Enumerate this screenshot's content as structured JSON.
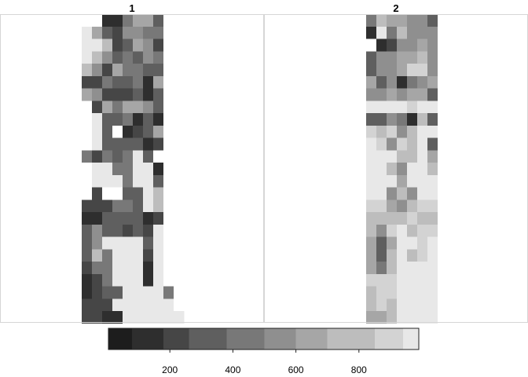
{
  "chart_data": {
    "type": "heatmap",
    "colorbar": {
      "ticks": [
        200,
        400,
        600,
        800
      ],
      "breaks": [
        5,
        80,
        180,
        260,
        380,
        500,
        600,
        700,
        850,
        940,
        990
      ],
      "colors": [
        "#1d1d1d",
        "#2e2e2e",
        "#464646",
        "#5f5f5f",
        "#787878",
        "#8f8f8f",
        "#a6a6a6",
        "#bdbdbd",
        "#d3d3d3",
        "#e8e8e8"
      ]
    },
    "na_color": "#ffffff",
    "panels": [
      {
        "title": "1",
        "ncols": 10,
        "rows": [
          [
            0,
            0,
            1,
            1,
            4,
            6,
            6,
            3,
            0,
            0
          ],
          [
            9,
            6,
            3,
            2,
            5,
            5,
            4,
            4,
            0,
            0
          ],
          [
            9,
            9,
            7,
            2,
            3,
            6,
            5,
            2,
            0,
            0
          ],
          [
            9,
            7,
            5,
            3,
            4,
            3,
            5,
            4,
            0,
            0
          ],
          [
            7,
            5,
            2,
            6,
            4,
            4,
            3,
            3,
            0,
            0
          ],
          [
            2,
            2,
            4,
            3,
            3,
            4,
            1,
            6,
            0,
            0
          ],
          [
            6,
            5,
            2,
            2,
            2,
            3,
            1,
            3,
            0,
            0
          ],
          [
            0,
            2,
            6,
            4,
            6,
            6,
            5,
            3,
            0,
            0
          ],
          [
            0,
            9,
            3,
            3,
            4,
            1,
            3,
            1,
            0,
            0
          ],
          [
            0,
            9,
            3,
            0,
            1,
            2,
            3,
            6,
            0,
            0
          ],
          [
            0,
            9,
            3,
            3,
            3,
            3,
            1,
            2,
            0,
            0
          ],
          [
            4,
            2,
            4,
            3,
            4,
            9,
            3,
            0,
            0,
            0
          ],
          [
            0,
            9,
            9,
            4,
            4,
            9,
            9,
            1,
            0,
            0
          ],
          [
            0,
            9,
            9,
            9,
            4,
            9,
            9,
            3,
            0,
            0
          ],
          [
            0,
            2,
            0,
            0,
            3,
            3,
            9,
            7,
            0,
            0
          ],
          [
            2,
            2,
            2,
            4,
            4,
            3,
            9,
            7,
            0,
            0
          ],
          [
            1,
            1,
            3,
            3,
            3,
            3,
            1,
            2,
            0,
            0
          ],
          [
            3,
            5,
            3,
            3,
            2,
            3,
            2,
            9,
            0,
            0
          ],
          [
            3,
            5,
            9,
            9,
            9,
            9,
            3,
            9,
            0,
            0
          ],
          [
            3,
            7,
            4,
            9,
            9,
            9,
            2,
            9,
            0,
            0
          ],
          [
            2,
            4,
            4,
            9,
            9,
            9,
            1,
            9,
            0,
            0
          ],
          [
            1,
            2,
            4,
            9,
            9,
            9,
            1,
            9,
            0,
            0
          ],
          [
            1,
            2,
            3,
            3,
            9,
            9,
            9,
            9,
            4,
            0
          ],
          [
            2,
            2,
            2,
            9,
            9,
            9,
            9,
            9,
            9,
            0
          ],
          [
            2,
            2,
            1,
            1,
            9,
            9,
            9,
            9,
            9,
            9
          ]
        ]
      },
      {
        "title": "2",
        "ncols": 10,
        "rows": [
          [
            0,
            0,
            4,
            7,
            6,
            6,
            5,
            5,
            3,
            0
          ],
          [
            0,
            0,
            1,
            9,
            4,
            7,
            5,
            5,
            5,
            0
          ],
          [
            0,
            0,
            0,
            1,
            2,
            5,
            5,
            6,
            5,
            0
          ],
          [
            0,
            0,
            3,
            5,
            5,
            6,
            6,
            7,
            5,
            0
          ],
          [
            0,
            0,
            3,
            5,
            5,
            6,
            8,
            8,
            5,
            0
          ],
          [
            0,
            0,
            6,
            3,
            5,
            1,
            4,
            5,
            6,
            0
          ],
          [
            0,
            0,
            5,
            5,
            6,
            5,
            6,
            6,
            3,
            0
          ],
          [
            0,
            0,
            9,
            9,
            9,
            9,
            8,
            9,
            9,
            0
          ],
          [
            0,
            0,
            3,
            3,
            5,
            4,
            1,
            7,
            3,
            0
          ],
          [
            0,
            0,
            8,
            7,
            8,
            5,
            7,
            9,
            9,
            0
          ],
          [
            0,
            0,
            9,
            8,
            5,
            8,
            7,
            9,
            3,
            0
          ],
          [
            0,
            0,
            9,
            9,
            9,
            7,
            7,
            9,
            6,
            0
          ],
          [
            0,
            0,
            9,
            9,
            7,
            5,
            9,
            9,
            7,
            0
          ],
          [
            0,
            0,
            9,
            9,
            9,
            6,
            9,
            9,
            9,
            0
          ],
          [
            0,
            0,
            9,
            9,
            5,
            7,
            5,
            9,
            9,
            0
          ],
          [
            0,
            0,
            8,
            8,
            6,
            5,
            7,
            8,
            8,
            0
          ],
          [
            0,
            0,
            7,
            7,
            7,
            7,
            8,
            7,
            7,
            0
          ],
          [
            0,
            0,
            7,
            5,
            8,
            9,
            7,
            8,
            8,
            0
          ],
          [
            0,
            0,
            6,
            3,
            6,
            9,
            9,
            8,
            9,
            0
          ],
          [
            0,
            0,
            6,
            3,
            7,
            9,
            7,
            8,
            9,
            0
          ],
          [
            0,
            0,
            6,
            4,
            7,
            9,
            9,
            9,
            9,
            0
          ],
          [
            0,
            0,
            8,
            8,
            8,
            9,
            9,
            9,
            9,
            0
          ],
          [
            0,
            0,
            7,
            8,
            8,
            9,
            9,
            9,
            9,
            0
          ],
          [
            0,
            0,
            7,
            8,
            7,
            9,
            9,
            9,
            9,
            0
          ],
          [
            0,
            0,
            6,
            6,
            7,
            9,
            9,
            9,
            9,
            0
          ]
        ]
      }
    ]
  }
}
